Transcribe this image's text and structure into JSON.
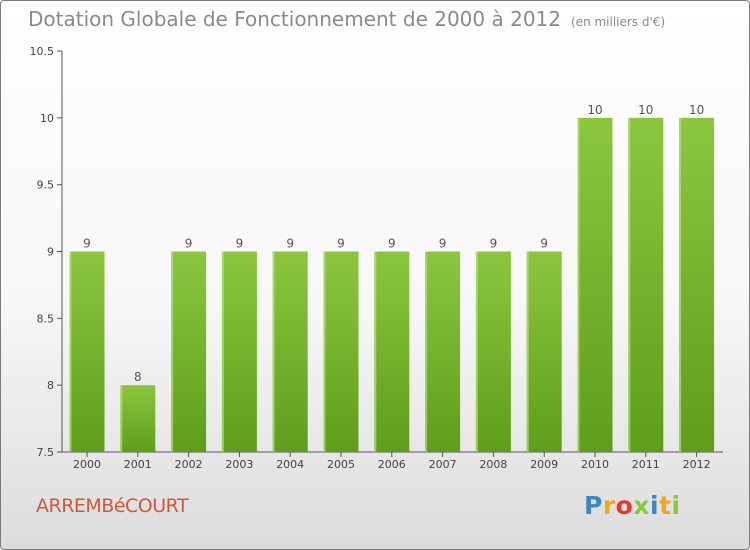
{
  "header": {
    "title": "Dotation Globale de Fonctionnement de 2000 à 2012",
    "unit": "(en milliers d'€)"
  },
  "footer": {
    "town": "ARREMBéCOURT",
    "logo_letters": [
      "P",
      "r",
      "o",
      "x",
      "i",
      "t",
      "i"
    ],
    "logo_colors": [
      "#3a86c8",
      "#f2a61d",
      "#e23a2e",
      "#8cc63f",
      "#3a86c8",
      "#f2a61d",
      "#8cc63f"
    ]
  },
  "chart_data": {
    "type": "bar",
    "title": "Dotation Globale de Fonctionnement de 2000 à 2012",
    "subtitle": "(en milliers d'€)",
    "categories": [
      "2000",
      "2001",
      "2002",
      "2003",
      "2004",
      "2005",
      "2006",
      "2007",
      "2008",
      "2009",
      "2010",
      "2011",
      "2012"
    ],
    "values": [
      9,
      8,
      9,
      9,
      9,
      9,
      9,
      9,
      9,
      9,
      10,
      10,
      10
    ],
    "xlabel": "",
    "ylabel": "",
    "ylim": [
      7.5,
      10.5
    ],
    "yticks": [
      "7.5",
      "8",
      "8.5",
      "9",
      "9.5",
      "10",
      "10.5"
    ],
    "grid": false,
    "bar_color": "#8cc63f",
    "bar_color_dark": "#5e9e1a"
  }
}
